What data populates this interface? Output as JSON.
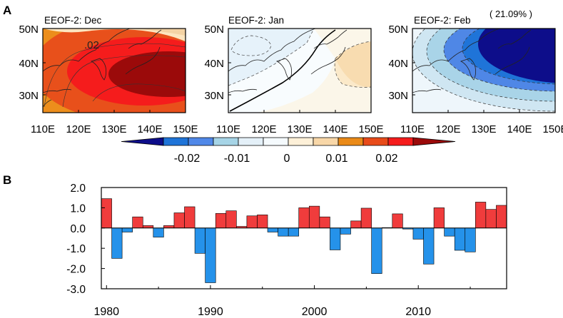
{
  "panel_labels": {
    "a": "A",
    "b": "B"
  },
  "maps": [
    {
      "title": "EEOF-2: Dec",
      "variance": "",
      "contour_label": ".02"
    },
    {
      "title": "EEOF-2: Jan",
      "variance": "",
      "contour_label": ""
    },
    {
      "title": "EEOF-2: Feb",
      "variance": "( 21.09% )",
      "contour_label": ""
    }
  ],
  "map_ticks": {
    "lat": [
      "50N",
      "40N",
      "30N"
    ],
    "lon": [
      "110E",
      "120E",
      "130E",
      "140E",
      "150E"
    ]
  },
  "colorbar": {
    "labels": [
      "-0.02",
      "-0.01",
      "0",
      "0.01",
      "0.02"
    ],
    "colors": [
      "#0d0d8a",
      "#1f74d8",
      "#5088e8",
      "#a6d4e6",
      "#e4f0f8",
      "#f5fafd",
      "#fdf0d8",
      "#f8d7a8",
      "#ea8a18",
      "#e84b1a",
      "#f51c1c",
      "#9b0a0a"
    ]
  },
  "chart_data": {
    "type": "bar",
    "title": "",
    "xlabel": "",
    "ylabel": "",
    "x": [
      1980,
      1981,
      1982,
      1983,
      1984,
      1985,
      1986,
      1987,
      1988,
      1989,
      1990,
      1991,
      1992,
      1993,
      1994,
      1995,
      1996,
      1997,
      1998,
      1999,
      2000,
      2001,
      2002,
      2003,
      2004,
      2005,
      2006,
      2007,
      2008,
      2009,
      2010,
      2011,
      2012,
      2013,
      2014,
      2015,
      2016,
      2017,
      2018
    ],
    "values": [
      1.45,
      -1.5,
      -0.2,
      0.55,
      0.12,
      -0.45,
      0.12,
      0.75,
      1.05,
      -1.25,
      -2.7,
      0.72,
      0.85,
      0.08,
      0.6,
      0.65,
      -0.2,
      -0.4,
      -0.4,
      1.0,
      1.08,
      0.55,
      -1.08,
      -0.3,
      0.35,
      0.98,
      -2.25,
      0.02,
      0.7,
      -0.05,
      -0.55,
      -1.78,
      1.0,
      -0.4,
      -1.1,
      -1.18,
      1.28,
      0.92,
      1.12
    ],
    "ylim": [
      -3.0,
      2.0
    ],
    "yticks": [
      "2.0",
      "1.0",
      "0.0",
      "-1.0",
      "-2.0",
      "-3.0"
    ],
    "xtick_labels": [
      "1980",
      "1990",
      "2000",
      "2010"
    ],
    "xlim": [
      1979.5,
      2018.5
    ],
    "colors": {
      "positive": "#f03c3c",
      "negative": "#2592ea"
    }
  }
}
